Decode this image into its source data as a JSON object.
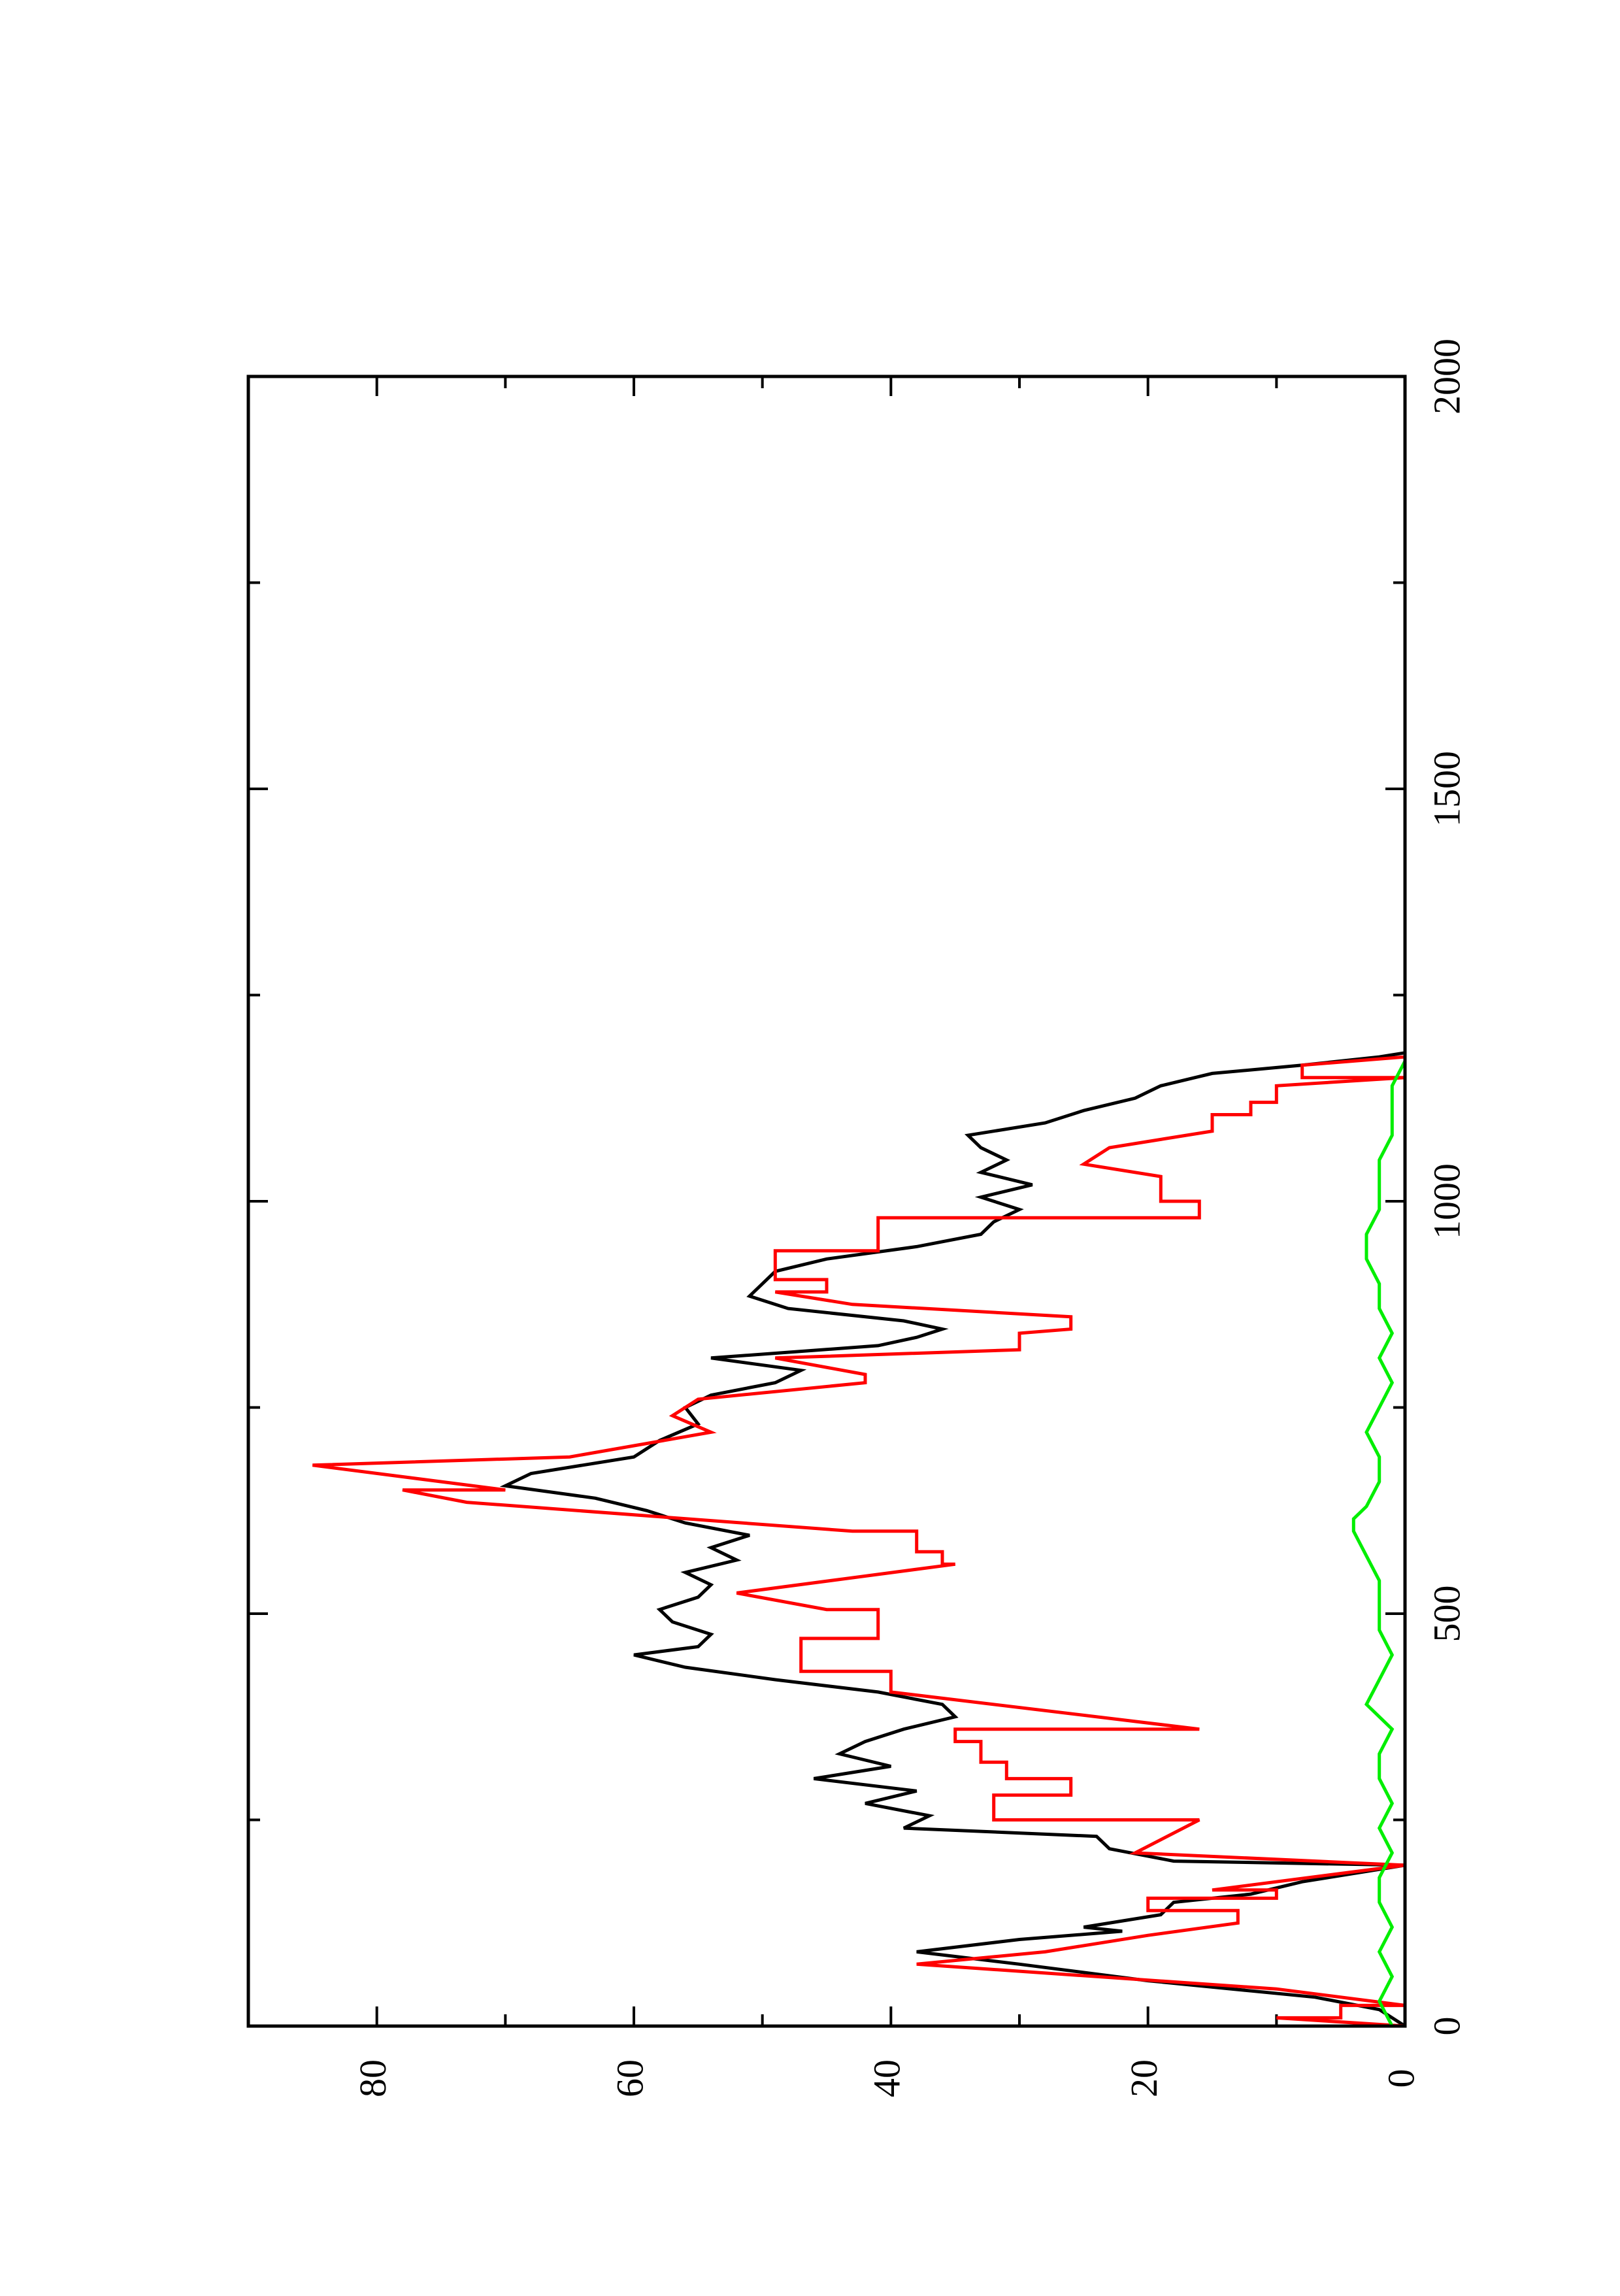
{
  "chart_data": {
    "type": "line",
    "title": "",
    "xlabel": "",
    "ylabel": "",
    "xlim": [
      0,
      2000
    ],
    "ylim": [
      0,
      90
    ],
    "x_ticks": [
      0,
      500,
      1000,
      1500,
      2000
    ],
    "x_tick_labels": [
      "0",
      "500",
      "1000",
      "1500",
      "2000"
    ],
    "y_ticks": [
      0,
      20,
      40,
      60,
      80
    ],
    "y_tick_labels": [
      "0",
      "20",
      "40",
      "60",
      "80"
    ],
    "x_minor_ticks": [
      250,
      750,
      1250,
      1750
    ],
    "y_minor_ticks": [
      10,
      30,
      50,
      70
    ],
    "orientation": "rotated-90-counterclockwise",
    "grid": false,
    "legend": "none",
    "series": [
      {
        "color": "#000000",
        "x": [
          0,
          20,
          35,
          55,
          75,
          90,
          105,
          115,
          120,
          135,
          150,
          160,
          175,
          185,
          195,
          200,
          215,
          230,
          240,
          255,
          270,
          285,
          300,
          315,
          330,
          345,
          360,
          375,
          390,
          405,
          420,
          435,
          450,
          460,
          475,
          490,
          505,
          520,
          535,
          550,
          565,
          580,
          595,
          610,
          625,
          640,
          655,
          670,
          690,
          710,
          730,
          750,
          765,
          780,
          795,
          810,
          825,
          835,
          845,
          855,
          870,
          885,
          900,
          915,
          930,
          945,
          960,
          975,
          990,
          1005,
          1020,
          1035,
          1050,
          1065,
          1080,
          1095,
          1110,
          1125,
          1140,
          1155,
          1165,
          1175,
          1180
        ],
        "values": [
          0,
          2,
          7,
          20,
          30,
          38,
          30,
          22,
          25,
          19,
          18,
          12,
          8,
          4,
          0,
          18,
          23,
          24,
          39,
          37,
          42,
          38,
          46,
          40,
          44,
          42,
          39,
          35,
          36,
          41,
          49,
          56,
          60,
          55,
          54,
          57,
          58,
          55,
          54,
          56,
          52,
          54,
          51,
          56,
          59,
          63,
          70,
          68,
          60,
          58,
          55,
          56,
          54,
          49,
          47,
          54,
          41,
          38,
          36,
          39,
          48,
          51,
          50,
          49,
          45,
          38,
          33,
          32,
          30,
          33,
          29,
          33,
          31,
          33,
          34,
          28,
          25,
          21,
          19,
          15,
          8,
          2,
          0
        ]
      },
      {
        "color": "#ff0000",
        "x": [
          0,
          10,
          10,
          25,
          25,
          45,
          75,
          90,
          110,
          125,
          140,
          140,
          155,
          155,
          165,
          165,
          185,
          195,
          210,
          250,
          250,
          280,
          280,
          300,
          300,
          320,
          320,
          345,
          345,
          360,
          360,
          405,
          430,
          430,
          470,
          470,
          505,
          505,
          525,
          560,
          560,
          575,
          575,
          600,
          600,
          635,
          650,
          650,
          680,
          690,
          720,
          740,
          740,
          760,
          760,
          780,
          790,
          810,
          820,
          840,
          845,
          860,
          875,
          890,
          890,
          905,
          905,
          940,
          940,
          980,
          980,
          1000,
          1000,
          1030,
          1045,
          1065,
          1085,
          1105,
          1105,
          1120,
          1120,
          1140,
          1150,
          1150,
          1165,
          1175,
          1180
        ],
        "values": [
          0,
          10,
          5,
          5,
          0,
          10,
          38,
          28,
          20,
          13,
          13,
          20,
          20,
          10,
          10,
          15,
          5,
          0,
          21,
          16,
          32,
          32,
          26,
          26,
          31,
          31,
          33,
          33,
          35,
          35,
          16,
          40,
          40,
          47,
          47,
          41,
          41,
          45,
          52,
          35,
          36,
          36,
          38,
          38,
          43,
          73,
          78,
          70,
          85,
          65,
          54,
          57,
          57,
          55,
          55,
          42,
          42,
          49,
          30,
          30,
          26,
          26,
          43,
          49,
          45,
          45,
          49,
          49,
          41,
          41,
          16,
          16,
          19,
          19,
          25,
          23,
          15,
          15,
          12,
          12,
          10,
          10,
          0,
          8,
          8,
          0,
          0
        ]
      },
      {
        "color": "#00ee00",
        "x": [
          0,
          30,
          60,
          90,
          120,
          150,
          180,
          210,
          240,
          270,
          300,
          330,
          360,
          390,
          420,
          450,
          480,
          510,
          540,
          570,
          600,
          615,
          630,
          660,
          690,
          720,
          750,
          780,
          810,
          840,
          870,
          900,
          930,
          960,
          990,
          1020,
          1050,
          1080,
          1110,
          1140,
          1170,
          1180
        ],
        "values": [
          1,
          2,
          1,
          2,
          1,
          2,
          2,
          1,
          2,
          1,
          2,
          2,
          1,
          3,
          2,
          1,
          2,
          2,
          2,
          3,
          4,
          4,
          3,
          2,
          2,
          3,
          2,
          1,
          2,
          1,
          2,
          2,
          3,
          3,
          2,
          2,
          2,
          1,
          1,
          1,
          0,
          0
        ]
      }
    ]
  }
}
